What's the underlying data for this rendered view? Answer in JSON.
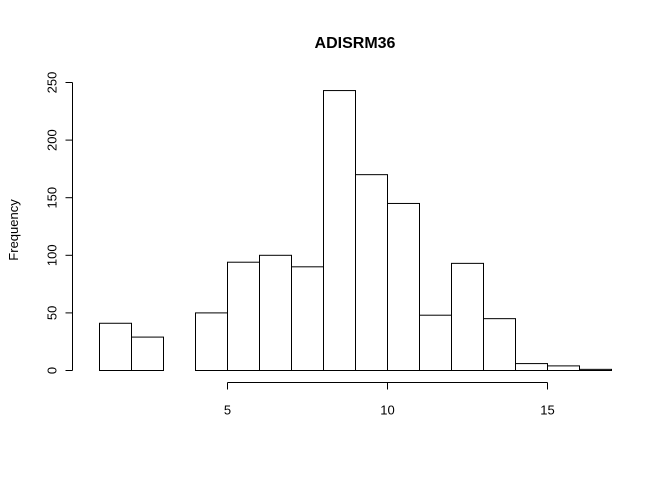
{
  "chart_data": {
    "type": "bar",
    "title": "ADISRM36",
    "xlabel": "",
    "ylabel": "Frequency",
    "bins": [
      {
        "start": 1,
        "end": 2,
        "count": 41
      },
      {
        "start": 2,
        "end": 3,
        "count": 29
      },
      {
        "start": 3,
        "end": 4,
        "count": 0
      },
      {
        "start": 4,
        "end": 5,
        "count": 50
      },
      {
        "start": 5,
        "end": 6,
        "count": 94
      },
      {
        "start": 6,
        "end": 7,
        "count": 100
      },
      {
        "start": 7,
        "end": 8,
        "count": 90
      },
      {
        "start": 8,
        "end": 9,
        "count": 243
      },
      {
        "start": 9,
        "end": 10,
        "count": 170
      },
      {
        "start": 10,
        "end": 11,
        "count": 145
      },
      {
        "start": 11,
        "end": 12,
        "count": 48
      },
      {
        "start": 12,
        "end": 13,
        "count": 93
      },
      {
        "start": 13,
        "end": 14,
        "count": 45
      },
      {
        "start": 14,
        "end": 15,
        "count": 6
      },
      {
        "start": 15,
        "end": 16,
        "count": 4
      },
      {
        "start": 16,
        "end": 17,
        "count": 1
      }
    ],
    "xlim": [
      1,
      17
    ],
    "ylim": [
      0,
      250
    ],
    "x_ticks": [
      "5",
      "10",
      "15"
    ],
    "y_ticks": [
      "0",
      "50",
      "100",
      "150",
      "200",
      "250"
    ],
    "grid": false,
    "bar_fill": "#ffffff",
    "bar_stroke": "#000000"
  }
}
